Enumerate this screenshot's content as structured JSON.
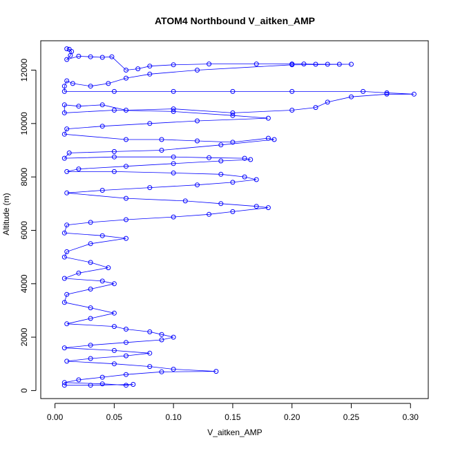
{
  "chart_data": {
    "type": "scatter",
    "title": "ATOM4 Northbound V_aitken_AMP",
    "xlabel": "V_aitken_AMP",
    "ylabel": "Altitude (m)",
    "xlim": [
      -0.012,
      0.315
    ],
    "ylim": [
      -300,
      13100
    ],
    "x_ticks": [
      0.0,
      0.05,
      0.1,
      0.15,
      0.2,
      0.25,
      0.3
    ],
    "x_tick_labels": [
      "0.00",
      "0.05",
      "0.10",
      "0.15",
      "0.20",
      "0.25",
      "0.30"
    ],
    "y_ticks": [
      0,
      2000,
      4000,
      6000,
      8000,
      10000,
      12000
    ],
    "y_tick_labels": [
      "0",
      "2000",
      "4000",
      "6000",
      "8000",
      "10000",
      "12000"
    ],
    "grid": false,
    "legend": "none",
    "series": [
      {
        "color": "#0000ff",
        "marker": "open-circle",
        "connected": true,
        "points": [
          [
            0.01,
            12800
          ],
          [
            0.012,
            12780
          ],
          [
            0.014,
            12700
          ],
          [
            0.013,
            12550
          ],
          [
            0.01,
            12400
          ],
          [
            0.02,
            12520
          ],
          [
            0.03,
            12500
          ],
          [
            0.04,
            12480
          ],
          [
            0.048,
            12500
          ],
          [
            0.06,
            12000
          ],
          [
            0.07,
            12050
          ],
          [
            0.08,
            12150
          ],
          [
            0.1,
            12200
          ],
          [
            0.13,
            12230
          ],
          [
            0.17,
            12230
          ],
          [
            0.2,
            12230
          ],
          [
            0.21,
            12230
          ],
          [
            0.22,
            12220
          ],
          [
            0.23,
            12220
          ],
          [
            0.24,
            12220
          ],
          [
            0.25,
            12220
          ],
          [
            0.2,
            12200
          ],
          [
            0.12,
            12000
          ],
          [
            0.08,
            11850
          ],
          [
            0.06,
            11700
          ],
          [
            0.045,
            11500
          ],
          [
            0.03,
            11400
          ],
          [
            0.015,
            11500
          ],
          [
            0.01,
            11600
          ],
          [
            0.008,
            11400
          ],
          [
            0.008,
            11200
          ],
          [
            0.05,
            11200
          ],
          [
            0.1,
            11200
          ],
          [
            0.15,
            11200
          ],
          [
            0.2,
            11200
          ],
          [
            0.26,
            11200
          ],
          [
            0.28,
            11150
          ],
          [
            0.303,
            11100
          ],
          [
            0.28,
            11100
          ],
          [
            0.25,
            11000
          ],
          [
            0.23,
            10800
          ],
          [
            0.22,
            10600
          ],
          [
            0.2,
            10500
          ],
          [
            0.15,
            10400
          ],
          [
            0.1,
            10550
          ],
          [
            0.06,
            10500
          ],
          [
            0.04,
            10700
          ],
          [
            0.02,
            10650
          ],
          [
            0.008,
            10700
          ],
          [
            0.008,
            10400
          ],
          [
            0.05,
            10500
          ],
          [
            0.1,
            10450
          ],
          [
            0.15,
            10300
          ],
          [
            0.18,
            10200
          ],
          [
            0.12,
            10100
          ],
          [
            0.08,
            10000
          ],
          [
            0.04,
            9900
          ],
          [
            0.01,
            9800
          ],
          [
            0.008,
            9600
          ],
          [
            0.06,
            9400
          ],
          [
            0.09,
            9400
          ],
          [
            0.12,
            9350
          ],
          [
            0.15,
            9300
          ],
          [
            0.18,
            9450
          ],
          [
            0.185,
            9400
          ],
          [
            0.14,
            9200
          ],
          [
            0.09,
            9000
          ],
          [
            0.05,
            8950
          ],
          [
            0.012,
            8900
          ],
          [
            0.008,
            8700
          ],
          [
            0.05,
            8750
          ],
          [
            0.1,
            8750
          ],
          [
            0.13,
            8720
          ],
          [
            0.16,
            8700
          ],
          [
            0.165,
            8650
          ],
          [
            0.14,
            8600
          ],
          [
            0.1,
            8500
          ],
          [
            0.06,
            8400
          ],
          [
            0.02,
            8300
          ],
          [
            0.01,
            8200
          ],
          [
            0.05,
            8200
          ],
          [
            0.1,
            8150
          ],
          [
            0.14,
            8100
          ],
          [
            0.16,
            8000
          ],
          [
            0.17,
            7900
          ],
          [
            0.15,
            7800
          ],
          [
            0.12,
            7700
          ],
          [
            0.08,
            7600
          ],
          [
            0.04,
            7500
          ],
          [
            0.01,
            7400
          ],
          [
            0.06,
            7200
          ],
          [
            0.11,
            7100
          ],
          [
            0.14,
            7000
          ],
          [
            0.17,
            6900
          ],
          [
            0.18,
            6850
          ],
          [
            0.15,
            6700
          ],
          [
            0.13,
            6600
          ],
          [
            0.1,
            6500
          ],
          [
            0.06,
            6400
          ],
          [
            0.03,
            6300
          ],
          [
            0.01,
            6200
          ],
          [
            0.008,
            5900
          ],
          [
            0.04,
            5800
          ],
          [
            0.06,
            5700
          ],
          [
            0.03,
            5500
          ],
          [
            0.01,
            5200
          ],
          [
            0.008,
            5000
          ],
          [
            0.03,
            4800
          ],
          [
            0.045,
            4600
          ],
          [
            0.02,
            4400
          ],
          [
            0.008,
            4200
          ],
          [
            0.04,
            4100
          ],
          [
            0.05,
            4000
          ],
          [
            0.03,
            3800
          ],
          [
            0.01,
            3600
          ],
          [
            0.008,
            3300
          ],
          [
            0.03,
            3100
          ],
          [
            0.05,
            2900
          ],
          [
            0.03,
            2700
          ],
          [
            0.01,
            2500
          ],
          [
            0.05,
            2400
          ],
          [
            0.06,
            2300
          ],
          [
            0.08,
            2200
          ],
          [
            0.09,
            2100
          ],
          [
            0.1,
            2000
          ],
          [
            0.09,
            1900
          ],
          [
            0.06,
            1800
          ],
          [
            0.03,
            1700
          ],
          [
            0.008,
            1600
          ],
          [
            0.05,
            1500
          ],
          [
            0.08,
            1400
          ],
          [
            0.06,
            1300
          ],
          [
            0.03,
            1200
          ],
          [
            0.01,
            1100
          ],
          [
            0.05,
            1000
          ],
          [
            0.08,
            900
          ],
          [
            0.1,
            800
          ],
          [
            0.136,
            720
          ],
          [
            0.09,
            700
          ],
          [
            0.06,
            600
          ],
          [
            0.04,
            500
          ],
          [
            0.02,
            400
          ],
          [
            0.008,
            300
          ],
          [
            0.04,
            250
          ],
          [
            0.06,
            200
          ],
          [
            0.066,
            230
          ],
          [
            0.03,
            200
          ],
          [
            0.008,
            200
          ]
        ]
      }
    ]
  }
}
